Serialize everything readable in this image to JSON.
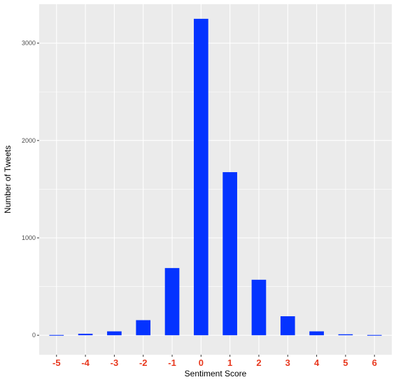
{
  "chart_data": {
    "type": "bar",
    "title": "",
    "xlabel": "Sentiment Score",
    "ylabel": "Number of Tweets",
    "categories": [
      "-5",
      "-4",
      "-3",
      "-2",
      "-1",
      "0",
      "1",
      "2",
      "3",
      "4",
      "5",
      "6"
    ],
    "values": [
      3,
      15,
      40,
      155,
      690,
      3250,
      1675,
      570,
      195,
      40,
      10,
      3
    ],
    "ylim": [
      -200,
      3400
    ],
    "yticks": [
      0,
      1000,
      2000,
      3000
    ],
    "ytick_labels": [
      "0",
      "1000",
      "2000",
      "3000"
    ],
    "grid": true,
    "legend": "none",
    "colors": {
      "bar": "#0433ff",
      "panel": "#ebebeb",
      "grid": "#ffffff",
      "xtick": "#e8391f"
    }
  }
}
